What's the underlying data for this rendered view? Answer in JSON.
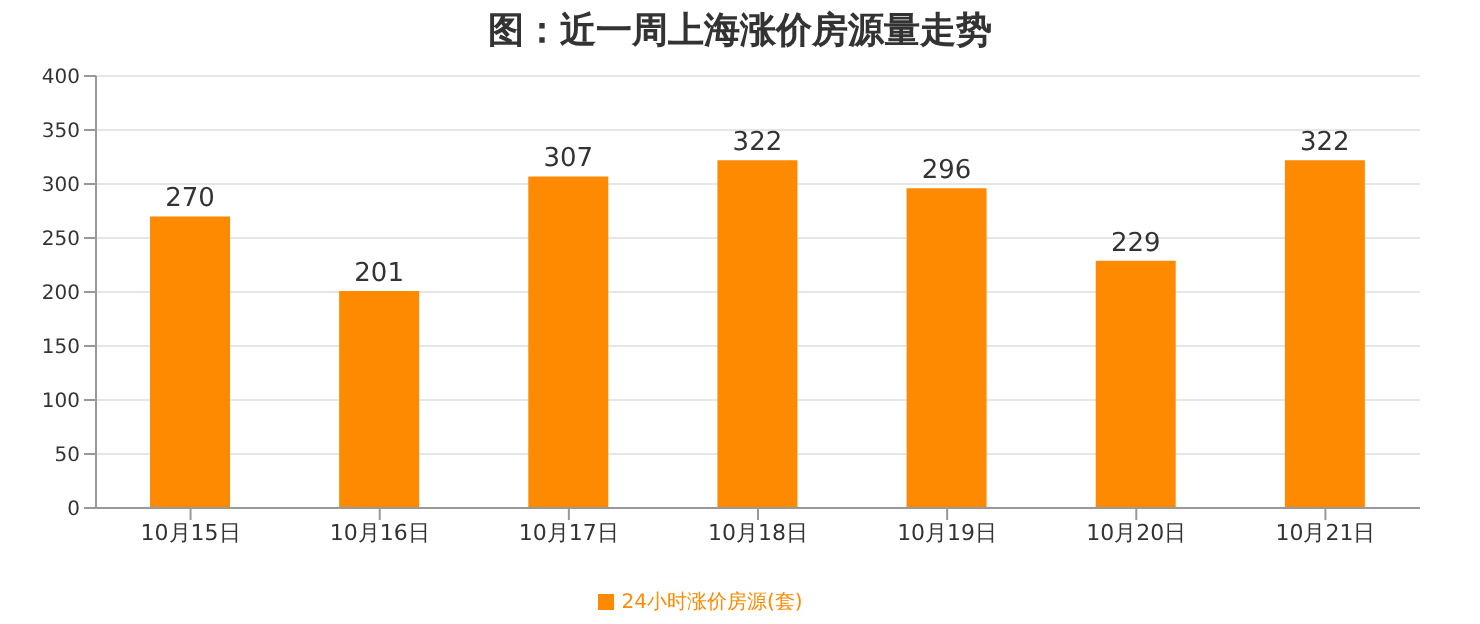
{
  "chart_data": {
    "type": "bar",
    "title": "图：近一周上海涨价房源量走势",
    "categories": [
      "10月15日",
      "10月16日",
      "10月17日",
      "10月18日",
      "10月19日",
      "10月20日",
      "10月21日"
    ],
    "series": [
      {
        "name": "24小时涨价房源(套)",
        "color": "#fe8a01",
        "values": [
          270,
          201,
          307,
          322,
          296,
          229,
          322
        ]
      }
    ],
    "ylim": [
      0,
      400
    ],
    "yticks": [
      0,
      50,
      100,
      150,
      200,
      250,
      300,
      350,
      400
    ],
    "grid": "y",
    "legend": "bottom",
    "data_labels": true
  }
}
